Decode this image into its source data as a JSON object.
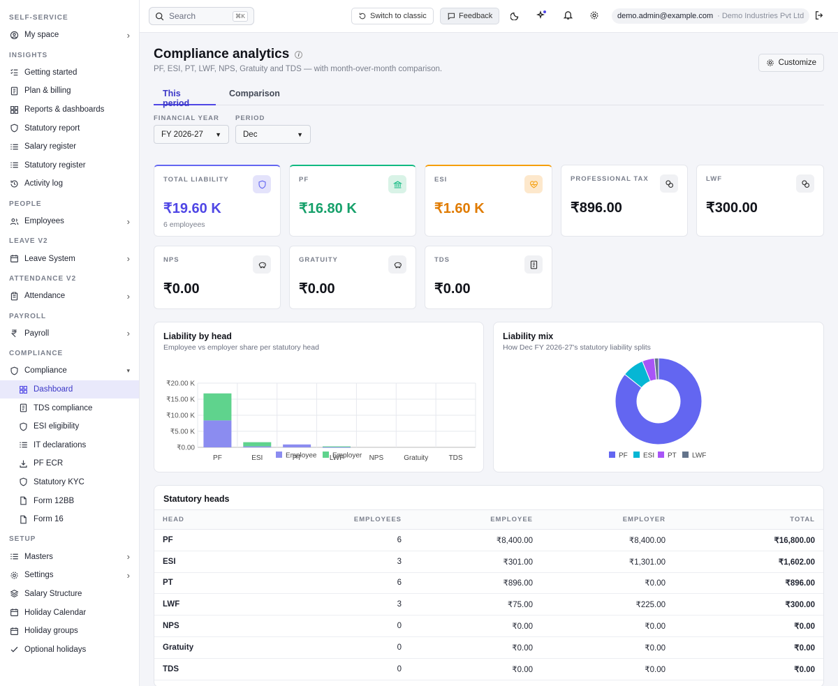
{
  "sidebar": {
    "sections": [
      {
        "title": "SELF-SERVICE",
        "items": [
          {
            "label": "My space",
            "icon": "user-circle-icon",
            "chevron": "right"
          }
        ]
      },
      {
        "title": "INSIGHTS",
        "items": [
          {
            "label": "Getting started",
            "icon": "list-check-icon"
          },
          {
            "label": "Plan & billing",
            "icon": "receipt-icon"
          },
          {
            "label": "Reports & dashboards",
            "icon": "dashboard-grid-icon"
          },
          {
            "label": "Statutory report",
            "icon": "shield-icon"
          },
          {
            "label": "Salary register",
            "icon": "list-icon"
          },
          {
            "label": "Statutory register",
            "icon": "list-icon"
          },
          {
            "label": "Activity log",
            "icon": "history-icon"
          }
        ]
      },
      {
        "title": "PEOPLE",
        "items": [
          {
            "label": "Employees",
            "icon": "users-icon",
            "chevron": "right"
          }
        ]
      },
      {
        "title": "LEAVE V2",
        "items": [
          {
            "label": "Leave System",
            "icon": "calendar-icon",
            "chevron": "right"
          }
        ]
      },
      {
        "title": "ATTENDANCE V2",
        "items": [
          {
            "label": "Attendance",
            "icon": "clipboard-icon",
            "chevron": "right"
          }
        ]
      },
      {
        "title": "PAYROLL",
        "items": [
          {
            "label": "Payroll",
            "icon": "rupee-icon",
            "chevron": "right"
          }
        ]
      },
      {
        "title": "COMPLIANCE",
        "items": [
          {
            "label": "Compliance",
            "icon": "shield-icon",
            "chevron": "down"
          },
          {
            "label": "Dashboard",
            "icon": "dashboard-grid-icon",
            "sub": true,
            "active": true
          },
          {
            "label": "TDS compliance",
            "icon": "receipt-icon",
            "sub": true
          },
          {
            "label": "ESI eligibility",
            "icon": "shield-icon",
            "sub": true
          },
          {
            "label": "IT declarations",
            "icon": "list-icon",
            "sub": true
          },
          {
            "label": "PF ECR",
            "icon": "download-icon",
            "sub": true
          },
          {
            "label": "Statutory KYC",
            "icon": "shield-icon",
            "sub": true
          },
          {
            "label": "Form 12BB",
            "icon": "file-icon",
            "sub": true
          },
          {
            "label": "Form 16",
            "icon": "file-icon",
            "sub": true
          }
        ]
      },
      {
        "title": "SETUP",
        "items": [
          {
            "label": "Masters",
            "icon": "list-icon",
            "chevron": "right"
          },
          {
            "label": "Settings",
            "icon": "gear-icon",
            "chevron": "right"
          },
          {
            "label": "Salary Structure",
            "icon": "layers-icon"
          },
          {
            "label": "Holiday Calendar",
            "icon": "calendar-icon"
          },
          {
            "label": "Holiday groups",
            "icon": "calendar-icon"
          },
          {
            "label": "Optional holidays",
            "icon": "check-icon"
          }
        ]
      }
    ]
  },
  "topbar": {
    "search_placeholder": "Search",
    "search_shortcut": "⌘K",
    "switch_label": "Switch to classic",
    "feedback_label": "Feedback",
    "user_email": "demo.admin@example.com",
    "org_name": "· Demo Industries Pvt Ltd"
  },
  "page": {
    "title": "Compliance analytics",
    "subtitle": "PF, ESI, PT, LWF, NPS, Gratuity and TDS — with month-over-month comparison.",
    "customize_label": "Customize",
    "tabs": [
      "This period",
      "Comparison"
    ],
    "filters": {
      "fy_label": "FINANCIAL YEAR",
      "fy_value": "FY 2026-27",
      "period_label": "PERIOD",
      "period_value": "Dec"
    }
  },
  "cards": [
    {
      "label": "TOTAL LIABILITY",
      "value": "₹19.60 K",
      "note": "6 employees",
      "color": "#4f46e5",
      "accent": "#6366f1",
      "badge_bg": "#e4e3fb",
      "icon": "shield-icon"
    },
    {
      "label": "PF",
      "value": "₹16.80 K",
      "color": "#16a06a",
      "accent": "#10b981",
      "badge_bg": "#d9f3e7",
      "icon": "bank-icon"
    },
    {
      "label": "ESI",
      "value": "₹1.60 K",
      "color": "#e07b00",
      "accent": "#f59e0b",
      "badge_bg": "#fde8cc",
      "icon": "heart-pulse-icon"
    },
    {
      "label": "PROFESSIONAL TAX",
      "value": "₹896.00",
      "color": "#11131a",
      "accent": "",
      "badge_bg": "#f0f1f4",
      "icon": "coins-icon"
    },
    {
      "label": "LWF",
      "value": "₹300.00",
      "color": "#11131a",
      "accent": "",
      "badge_bg": "#f0f1f4",
      "icon": "coins-icon"
    },
    {
      "label": "NPS",
      "value": "₹0.00",
      "color": "#11131a",
      "accent": "",
      "badge_bg": "#f0f1f4",
      "icon": "piggy-bank-icon"
    },
    {
      "label": "GRATUITY",
      "value": "₹0.00",
      "color": "#11131a",
      "accent": "",
      "badge_bg": "#f0f1f4",
      "icon": "piggy-bank-icon"
    },
    {
      "label": "TDS",
      "value": "₹0.00",
      "color": "#11131a",
      "accent": "",
      "badge_bg": "#f0f1f4",
      "icon": "receipt-icon"
    }
  ],
  "bar_panel": {
    "title": "Liability by head",
    "subtitle": "Employee vs employer share per statutory head"
  },
  "pie_panel": {
    "title": "Liability mix",
    "subtitle": "How Dec FY 2026-27's statutory liability splits"
  },
  "chart_data": [
    {
      "type": "bar",
      "stacked": true,
      "categories": [
        "PF",
        "ESI",
        "PT",
        "LWF",
        "NPS",
        "Gratuity",
        "TDS"
      ],
      "series": [
        {
          "name": "Employee",
          "color": "#8b8cf0",
          "values": [
            8400,
            301,
            896,
            75,
            0,
            0,
            0
          ]
        },
        {
          "name": "Employer",
          "color": "#5fd38d",
          "values": [
            8400,
            1301,
            0,
            225,
            0,
            0,
            0
          ]
        }
      ],
      "yticks": [
        "₹0.00",
        "₹5.00 K",
        "₹10.00 K",
        "₹15.00 K",
        "₹20.00 K"
      ],
      "ylim": [
        0,
        20000
      ],
      "grid": true,
      "legend": "bottom"
    },
    {
      "type": "pie",
      "donut": true,
      "labels": [
        "PF",
        "ESI",
        "PT",
        "LWF"
      ],
      "values": [
        16800,
        1602,
        896,
        300
      ],
      "colors": [
        "#6366f1",
        "#06b6d4",
        "#a855f7",
        "#64748b"
      ],
      "legend": "bottom"
    }
  ],
  "table": {
    "title": "Statutory heads",
    "columns": [
      "HEAD",
      "EMPLOYEES",
      "EMPLOYEE",
      "EMPLOYER",
      "TOTAL"
    ],
    "rows": [
      [
        "PF",
        "6",
        "₹8,400.00",
        "₹8,400.00",
        "₹16,800.00"
      ],
      [
        "ESI",
        "3",
        "₹301.00",
        "₹1,301.00",
        "₹1,602.00"
      ],
      [
        "PT",
        "6",
        "₹896.00",
        "₹0.00",
        "₹896.00"
      ],
      [
        "LWF",
        "3",
        "₹75.00",
        "₹225.00",
        "₹300.00"
      ],
      [
        "NPS",
        "0",
        "₹0.00",
        "₹0.00",
        "₹0.00"
      ],
      [
        "Gratuity",
        "0",
        "₹0.00",
        "₹0.00",
        "₹0.00"
      ],
      [
        "TDS",
        "0",
        "₹0.00",
        "₹0.00",
        "₹0.00"
      ]
    ]
  }
}
